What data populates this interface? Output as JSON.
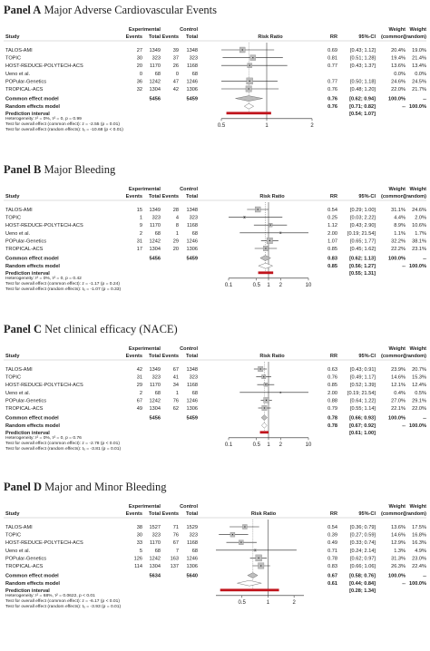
{
  "labels": {
    "study": "Study",
    "experimental": "Experimental",
    "control": "Control",
    "events": "Events",
    "total": "Total",
    "rr": "RR",
    "ci": "95%-CI",
    "weight": "Weight",
    "common_paren": "(common)",
    "random_paren": "(random)",
    "common_model": "Common effect model",
    "random_model": "Random effects model",
    "prediction": "Prediction interval",
    "measure": "Risk Ratio",
    "dashes": "--"
  },
  "chart_data": [
    {
      "type": "forest",
      "panel_label": "Panel A",
      "title": "Major Adverse Cardiovascular Events",
      "xaxis": {
        "log": true,
        "ticks": [
          0.5,
          1,
          2
        ],
        "tick_labels": [
          "0.5",
          "1",
          "2"
        ],
        "range": [
          0.5,
          2.0
        ]
      },
      "studies": [
        {
          "name": "TALOS-AMI",
          "e_exp": "27",
          "n_exp": "1349",
          "e_ctl": "39",
          "n_ctl": "1348",
          "rr": 0.69,
          "lo": 0.43,
          "hi": 1.12,
          "rr_txt": "0.69",
          "ci_txt": "[0.43; 1.12]",
          "w_common": "20.4%",
          "w_random": "19.0%",
          "size": 6
        },
        {
          "name": "TOPIC",
          "e_exp": "30",
          "n_exp": "323",
          "e_ctl": "37",
          "n_ctl": "323",
          "rr": 0.81,
          "lo": 0.51,
          "hi": 1.28,
          "rr_txt": "0.81",
          "ci_txt": "[0.51; 1.28]",
          "w_common": "19.4%",
          "w_random": "21.4%",
          "size": 6
        },
        {
          "name": "HOST-REDUCE-POLYTECH-ACS",
          "e_exp": "20",
          "n_exp": "1170",
          "e_ctl": "26",
          "n_ctl": "1168",
          "rr": 0.77,
          "lo": 0.43,
          "hi": 1.37,
          "rr_txt": "0.77",
          "ci_txt": "[0.43; 1.37]",
          "w_common": "13.6%",
          "w_random": "13.4%",
          "size": 5
        },
        {
          "name": "Ueno et al.",
          "e_exp": "0",
          "n_exp": "68",
          "e_ctl": "0",
          "n_ctl": "68",
          "rr": null,
          "lo": null,
          "hi": null,
          "rr_txt": "",
          "ci_txt": "",
          "w_common": "0.0%",
          "w_random": "0.0%",
          "size": 0
        },
        {
          "name": "POPular-Genetics",
          "e_exp": "36",
          "n_exp": "1242",
          "e_ctl": "47",
          "n_ctl": "1246",
          "rr": 0.77,
          "lo": 0.5,
          "hi": 1.18,
          "rr_txt": "0.77",
          "ci_txt": "[0.50; 1.18]",
          "w_common": "24.6%",
          "w_random": "24.5%",
          "size": 7
        },
        {
          "name": "TROPICAL-ACS",
          "e_exp": "32",
          "n_exp": "1304",
          "e_ctl": "42",
          "n_ctl": "1306",
          "rr": 0.76,
          "lo": 0.48,
          "hi": 1.2,
          "rr_txt": "0.76",
          "ci_txt": "[0.48; 1.20]",
          "w_common": "22.0%",
          "w_random": "21.7%",
          "size": 6.5
        }
      ],
      "total_exp": "5456",
      "total_ctl": "5459",
      "common": {
        "rr": 0.76,
        "lo": 0.62,
        "hi": 0.94,
        "rr_txt": "0.76",
        "ci_txt": "[0.62; 0.94]",
        "w": "100.0%"
      },
      "random": {
        "rr": 0.76,
        "lo": 0.71,
        "hi": 0.82,
        "rr_txt": "0.76",
        "ci_txt": "[0.71; 0.82]",
        "w": "100.0%"
      },
      "prediction": {
        "lo": 0.54,
        "hi": 1.07,
        "ci_txt": "[0.54; 1.07]"
      },
      "het_lines": [
        "Heterogeneity: I² = 0%, τ² = 0, p = 0.99",
        "Test for overall effect (common effect): z = -2.55 (p = 0.01)",
        "Test for overall effect (random effects): t₅ = -10.68 (p < 0.01)"
      ]
    },
    {
      "type": "forest",
      "panel_label": "Panel B",
      "title": "Major Bleeding",
      "xaxis": {
        "log": true,
        "ticks": [
          0.1,
          0.5,
          1,
          2,
          10
        ],
        "tick_labels": [
          "0.1",
          "0.5",
          "1",
          "2",
          "10"
        ],
        "range": [
          0.1,
          10
        ]
      },
      "studies": [
        {
          "name": "TALOS-AMI",
          "e_exp": "15",
          "n_exp": "1349",
          "e_ctl": "28",
          "n_ctl": "1348",
          "rr": 0.54,
          "lo": 0.29,
          "hi": 1.0,
          "rr_txt": "0.54",
          "ci_txt": "[0.29; 1.00]",
          "w_common": "31.1%",
          "w_random": "24.6%",
          "size": 6
        },
        {
          "name": "TOPIC",
          "e_exp": "1",
          "n_exp": "323",
          "e_ctl": "4",
          "n_ctl": "323",
          "rr": 0.25,
          "lo": 0.03,
          "hi": 2.22,
          "rr_txt": "0.25",
          "ci_txt": "[0.03; 2.22]",
          "w_common": "4.4%",
          "w_random": "2.0%",
          "size": 2.5
        },
        {
          "name": "HOST-REDUCE-POLYTECH-ACS",
          "e_exp": "9",
          "n_exp": "1170",
          "e_ctl": "8",
          "n_ctl": "1168",
          "rr": 1.12,
          "lo": 0.43,
          "hi": 2.9,
          "rr_txt": "1.12",
          "ci_txt": "[0.43; 2.90]",
          "w_common": "8.9%",
          "w_random": "10.6%",
          "size": 4
        },
        {
          "name": "Ueno et al.",
          "e_exp": "2",
          "n_exp": "68",
          "e_ctl": "1",
          "n_ctl": "68",
          "rr": 2.0,
          "lo": 0.19,
          "hi": 21.54,
          "rr_txt": "2.00",
          "ci_txt": "[0.19; 21.54]",
          "w_common": "1.1%",
          "w_random": "1.7%",
          "size": 2
        },
        {
          "name": "POPular-Genetics",
          "e_exp": "31",
          "n_exp": "1242",
          "e_ctl": "29",
          "n_ctl": "1246",
          "rr": 1.07,
          "lo": 0.65,
          "hi": 1.77,
          "rr_txt": "1.07",
          "ci_txt": "[0.65; 1.77]",
          "w_common": "32.2%",
          "w_random": "38.1%",
          "size": 6.5
        },
        {
          "name": "TROPICAL-ACS",
          "e_exp": "17",
          "n_exp": "1304",
          "e_ctl": "20",
          "n_ctl": "1306",
          "rr": 0.85,
          "lo": 0.45,
          "hi": 1.62,
          "rr_txt": "0.85",
          "ci_txt": "[0.45; 1.62]",
          "w_common": "22.2%",
          "w_random": "23.1%",
          "size": 5.5
        }
      ],
      "total_exp": "5456",
      "total_ctl": "5459",
      "common": {
        "rr": 0.83,
        "lo": 0.62,
        "hi": 1.13,
        "rr_txt": "0.83",
        "ci_txt": "[0.62; 1.13]",
        "w": "100.0%"
      },
      "random": {
        "rr": 0.85,
        "lo": 0.56,
        "hi": 1.27,
        "rr_txt": "0.85",
        "ci_txt": "[0.56; 1.27]",
        "w": "100.0%"
      },
      "prediction": {
        "lo": 0.55,
        "hi": 1.31,
        "ci_txt": "[0.55; 1.31]"
      },
      "het_lines": [
        "Heterogeneity: I² = 0%, τ² = 0, p = 0.42",
        "Test for overall effect (common effect): z = -1.17 (p = 0.24)",
        "Test for overall effect (random effects): t₅ = -1.07 (p = 0.33)"
      ]
    },
    {
      "type": "forest",
      "panel_label": "Panel C",
      "title": "Net clinical efficacy (NACE)",
      "xaxis": {
        "log": true,
        "ticks": [
          0.1,
          0.5,
          1,
          2,
          10
        ],
        "tick_labels": [
          "0.1",
          "0.5",
          "1",
          "2",
          "10"
        ],
        "range": [
          0.1,
          10
        ]
      },
      "studies": [
        {
          "name": "TALOS-AMI",
          "e_exp": "42",
          "n_exp": "1349",
          "e_ctl": "67",
          "n_ctl": "1348",
          "rr": 0.63,
          "lo": 0.43,
          "hi": 0.91,
          "rr_txt": "0.63",
          "ci_txt": "[0.43; 0.91]",
          "w_common": "23.9%",
          "w_random": "20.7%",
          "size": 5.5
        },
        {
          "name": "TOPIC",
          "e_exp": "31",
          "n_exp": "323",
          "e_ctl": "41",
          "n_ctl": "323",
          "rr": 0.76,
          "lo": 0.49,
          "hi": 1.17,
          "rr_txt": "0.76",
          "ci_txt": "[0.49; 1.17]",
          "w_common": "14.6%",
          "w_random": "15.3%",
          "size": 4.5
        },
        {
          "name": "HOST-REDUCE-POLYTECH-ACS",
          "e_exp": "29",
          "n_exp": "1170",
          "e_ctl": "34",
          "n_ctl": "1168",
          "rr": 0.85,
          "lo": 0.52,
          "hi": 1.39,
          "rr_txt": "0.85",
          "ci_txt": "[0.52; 1.39]",
          "w_common": "12.1%",
          "w_random": "12.4%",
          "size": 4
        },
        {
          "name": "Ueno et al.",
          "e_exp": "2",
          "n_exp": "68",
          "e_ctl": "1",
          "n_ctl": "68",
          "rr": 2.0,
          "lo": 0.19,
          "hi": 21.54,
          "rr_txt": "2.00",
          "ci_txt": "[0.19; 21.54]",
          "w_common": "0.4%",
          "w_random": "0.5%",
          "size": 1.5
        },
        {
          "name": "POPular-Genetics",
          "e_exp": "67",
          "n_exp": "1242",
          "e_ctl": "76",
          "n_ctl": "1246",
          "rr": 0.88,
          "lo": 0.64,
          "hi": 1.22,
          "rr_txt": "0.88",
          "ci_txt": "[0.64; 1.22]",
          "w_common": "27.0%",
          "w_random": "29.1%",
          "size": 6
        },
        {
          "name": "TROPICAL-ACS",
          "e_exp": "49",
          "n_exp": "1304",
          "e_ctl": "62",
          "n_ctl": "1306",
          "rr": 0.79,
          "lo": 0.55,
          "hi": 1.14,
          "rr_txt": "0.79",
          "ci_txt": "[0.55; 1.14]",
          "w_common": "22.1%",
          "w_random": "22.0%",
          "size": 5.5
        }
      ],
      "total_exp": "5456",
      "total_ctl": "5459",
      "common": {
        "rr": 0.78,
        "lo": 0.66,
        "hi": 0.93,
        "rr_txt": "0.78",
        "ci_txt": "[0.66; 0.93]",
        "w": "100.0%"
      },
      "random": {
        "rr": 0.78,
        "lo": 0.67,
        "hi": 0.92,
        "rr_txt": "0.78",
        "ci_txt": "[0.67; 0.92]",
        "w": "100.0%"
      },
      "prediction": {
        "lo": 0.61,
        "hi": 1.0,
        "ci_txt": "[0.61; 1.00]"
      },
      "het_lines": [
        "Heterogeneity: I² = 0%, τ² = 0, p = 0.76",
        "Test for overall effect (common effect): z = -2.78 (p < 0.01)",
        "Test for overall effect (random effects): t₅ = -3.81 (p = 0.01)"
      ]
    },
    {
      "type": "forest",
      "panel_label": "Panel D",
      "title": "Major and Minor Bleeding",
      "xaxis": {
        "log": true,
        "ticks": [
          0.5,
          1,
          2
        ],
        "tick_labels": [
          "0.5",
          "1",
          "2"
        ],
        "range": [
          0.25,
          2.6
        ]
      },
      "studies": [
        {
          "name": "TALOS-AMI",
          "e_exp": "38",
          "n_exp": "1527",
          "e_ctl": "71",
          "n_ctl": "1529",
          "rr": 0.54,
          "lo": 0.36,
          "hi": 0.79,
          "rr_txt": "0.54",
          "ci_txt": "[0.36; 0.79]",
          "w_common": "13.6%",
          "w_random": "17.5%",
          "size": 5
        },
        {
          "name": "TOPIC",
          "e_exp": "30",
          "n_exp": "323",
          "e_ctl": "76",
          "n_ctl": "323",
          "rr": 0.39,
          "lo": 0.27,
          "hi": 0.59,
          "rr_txt": "0.39",
          "ci_txt": "[0.27; 0.59]",
          "w_common": "14.6%",
          "w_random": "16.8%",
          "size": 5
        },
        {
          "name": "HOST-REDUCE-POLYTECH-ACS",
          "e_exp": "33",
          "n_exp": "1170",
          "e_ctl": "67",
          "n_ctl": "1168",
          "rr": 0.49,
          "lo": 0.33,
          "hi": 0.74,
          "rr_txt": "0.49",
          "ci_txt": "[0.33; 0.74]",
          "w_common": "12.9%",
          "w_random": "16.3%",
          "size": 5
        },
        {
          "name": "Ueno et al.",
          "e_exp": "5",
          "n_exp": "68",
          "e_ctl": "7",
          "n_ctl": "68",
          "rr": 0.71,
          "lo": 0.24,
          "hi": 2.14,
          "rr_txt": "0.71",
          "ci_txt": "[0.24; 2.14]",
          "w_common": "1.3%",
          "w_random": "4.9%",
          "size": 2.5
        },
        {
          "name": "POPular-Genetics",
          "e_exp": "126",
          "n_exp": "1242",
          "e_ctl": "163",
          "n_ctl": "1246",
          "rr": 0.78,
          "lo": 0.62,
          "hi": 0.97,
          "rr_txt": "0.78",
          "ci_txt": "[0.62; 0.97]",
          "w_common": "31.3%",
          "w_random": "23.0%",
          "size": 7
        },
        {
          "name": "TROPICAL-ACS",
          "e_exp": "114",
          "n_exp": "1304",
          "e_ctl": "137",
          "n_ctl": "1306",
          "rr": 0.83,
          "lo": 0.66,
          "hi": 1.06,
          "rr_txt": "0.83",
          "ci_txt": "[0.66; 1.06]",
          "w_common": "26.3%",
          "w_random": "22.4%",
          "size": 6.5
        }
      ],
      "total_exp": "5634",
      "total_ctl": "5640",
      "common": {
        "rr": 0.67,
        "lo": 0.58,
        "hi": 0.76,
        "rr_txt": "0.67",
        "ci_txt": "[0.58; 0.76]",
        "w": "100.0%"
      },
      "random": {
        "rr": 0.61,
        "lo": 0.44,
        "hi": 0.84,
        "rr_txt": "0.61",
        "ci_txt": "[0.44; 0.84]",
        "w": "100.0%"
      },
      "prediction": {
        "lo": 0.28,
        "hi": 1.34,
        "ci_txt": "[0.28; 1.34]"
      },
      "het_lines": [
        "Heterogeneity: I² = 68%, τ² = 0.0622, p < 0.01",
        "Test for overall effect (common effect): z = -6.17 (p < 0.01)",
        "Test for overall effect (random effects): t₅ = -3.93 (p = 0.01)"
      ]
    }
  ]
}
